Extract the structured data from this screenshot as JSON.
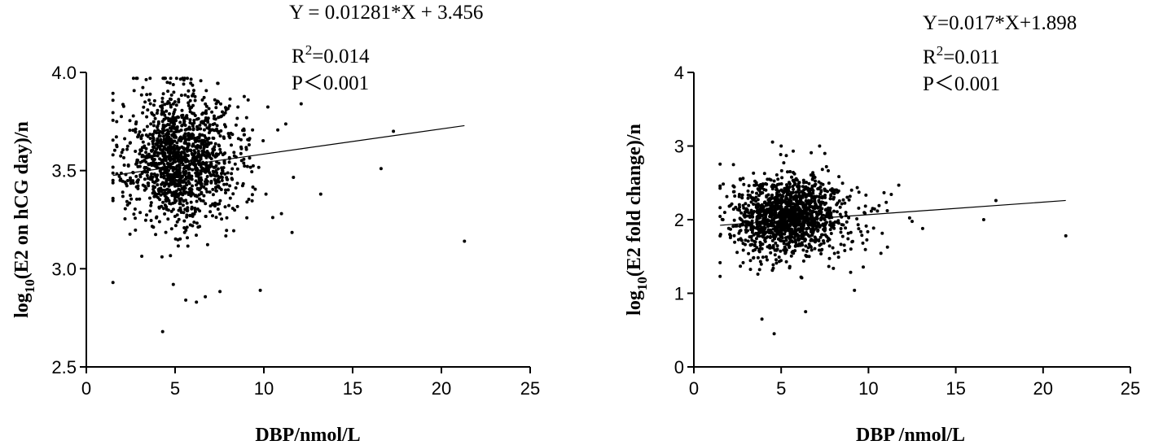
{
  "chart_data": [
    {
      "type": "scatter",
      "xlabel": "DBP/nmol/L",
      "ylabel_prefix": "log",
      "ylabel_sub": "10",
      "ylabel_rest": "(E2 on hCG day)/n",
      "xlim": [
        0,
        25
      ],
      "ylim": [
        2.5,
        4.0
      ],
      "xticks": [
        "0",
        "5",
        "10",
        "15",
        "20",
        "25"
      ],
      "yticks": [
        "2.5",
        "3.0",
        "3.5",
        "4.0"
      ],
      "annotations": {
        "equation": "Y = 0.01281*X + 3.456",
        "r2_prefix": "R",
        "r2_sup": "2",
        "r2_value": "=0.014",
        "p_value": "P＜0.001"
      },
      "fit": {
        "slope": 0.01281,
        "intercept": 3.456,
        "x_range": [
          1.5,
          21.3
        ]
      },
      "points": [
        [
          4.3,
          2.68
        ],
        [
          1.5,
          2.93
        ],
        [
          21.3,
          3.14
        ],
        [
          16.6,
          3.51
        ],
        [
          17.3,
          3.7
        ],
        [
          12.1,
          3.84
        ],
        [
          13.2,
          3.38
        ],
        [
          9.8,
          2.89
        ],
        [
          5.6,
          2.84
        ],
        [
          6.2,
          2.83
        ],
        [
          4.9,
          2.92
        ]
      ],
      "cloud": {
        "n": 1400,
        "x_mean": 5.2,
        "x_sd": 1.5,
        "y_mean": 3.57,
        "y_sd": 0.17
      }
    },
    {
      "type": "scatter",
      "xlabel": "DBP /nmol/L",
      "ylabel_prefix": "log",
      "ylabel_sub": "10",
      "ylabel_rest": "(E2 fold change)/n",
      "xlim": [
        0,
        25
      ],
      "ylim": [
        0,
        4
      ],
      "xticks": [
        "0",
        "5",
        "10",
        "15",
        "20",
        "25"
      ],
      "yticks": [
        "0",
        "1",
        "2",
        "3",
        "4"
      ],
      "annotations": {
        "equation": "Y=0.017*X+1.898",
        "r2_prefix": "R",
        "r2_sup": "2",
        "r2_value": "=0.011",
        "p_value": "P＜0.001"
      },
      "fit": {
        "slope": 0.017,
        "intercept": 1.898,
        "x_range": [
          1.5,
          21.3
        ]
      },
      "points": [
        [
          4.6,
          0.45
        ],
        [
          3.9,
          0.65
        ],
        [
          6.4,
          0.75
        ],
        [
          21.3,
          1.78
        ],
        [
          17.3,
          2.26
        ],
        [
          16.6,
          2.0
        ],
        [
          13.1,
          1.88
        ],
        [
          9.2,
          1.04
        ],
        [
          5.0,
          3.0
        ],
        [
          7.2,
          3.0
        ],
        [
          7.5,
          2.9
        ],
        [
          1.5,
          1.23
        ]
      ],
      "cloud": {
        "n": 1400,
        "x_mean": 5.3,
        "x_sd": 1.5,
        "y_mean": 2.04,
        "y_sd": 0.27
      }
    }
  ]
}
